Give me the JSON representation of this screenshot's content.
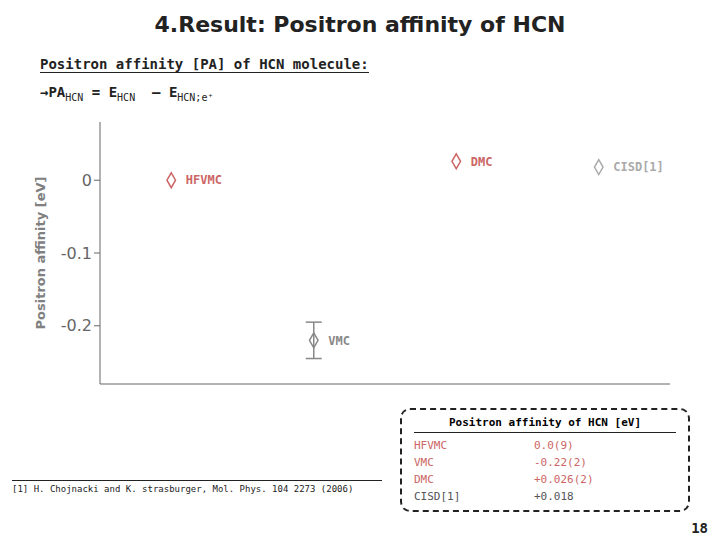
{
  "chart_data": {
    "type": "scatter",
    "title": "4.Result: Positron affinity of HCN",
    "subtitle": "Positron affinity [PA] of HCN molecule:",
    "formula": [
      {
        "text": "→PA",
        "sub": "HCN"
      },
      {
        "text": "= E",
        "sub": "HCN"
      },
      {
        "text": " – E",
        "sub": "HCN;e⁺"
      }
    ],
    "ylabel": "Positron affinity [eV]",
    "categories": [
      "HFVMC",
      "VMC",
      "DMC",
      "CISD[1]"
    ],
    "values": [
      0.0,
      -0.22,
      0.026,
      0.018
    ],
    "errors": [
      null,
      0.025,
      null,
      null
    ],
    "colors": [
      "#cc6666",
      "#888888",
      "#cc6666",
      "#aaaaaa"
    ],
    "ylim": [
      -0.28,
      0.08
    ],
    "yticks": [
      0,
      -0.1,
      -0.2
    ],
    "tick_labels": "y",
    "grid": false,
    "table": {
      "title": "Positron affinity of HCN [eV]",
      "rows": [
        {
          "name": "HFVMC",
          "value": "0.0(9)",
          "color": "#cc6666"
        },
        {
          "name": "VMC",
          "value": "-0.22(2)",
          "color": "#cc6666"
        },
        {
          "name": "DMC",
          "value": "+0.026(2)",
          "color": "#cc6666"
        },
        {
          "name": "CISD[1]",
          "value": "+0.018",
          "color": "#555555"
        }
      ]
    },
    "footnote": "[1] H. Chojnacki and K. strasburger, Mol. Phys. 104 2273 (2006)",
    "page_num": "18"
  }
}
